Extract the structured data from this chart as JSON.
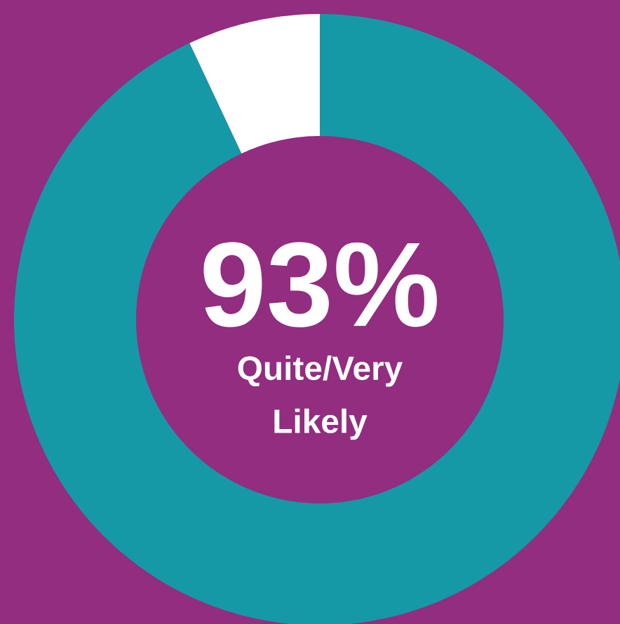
{
  "chart_data": {
    "type": "donut",
    "categories": [
      null,
      null
    ],
    "values": [
      93,
      7
    ],
    "colors": [
      "#1699a6",
      "#ffffff"
    ],
    "annotations": [
      "93%",
      "Quite/Very Likely"
    ]
  }
}
